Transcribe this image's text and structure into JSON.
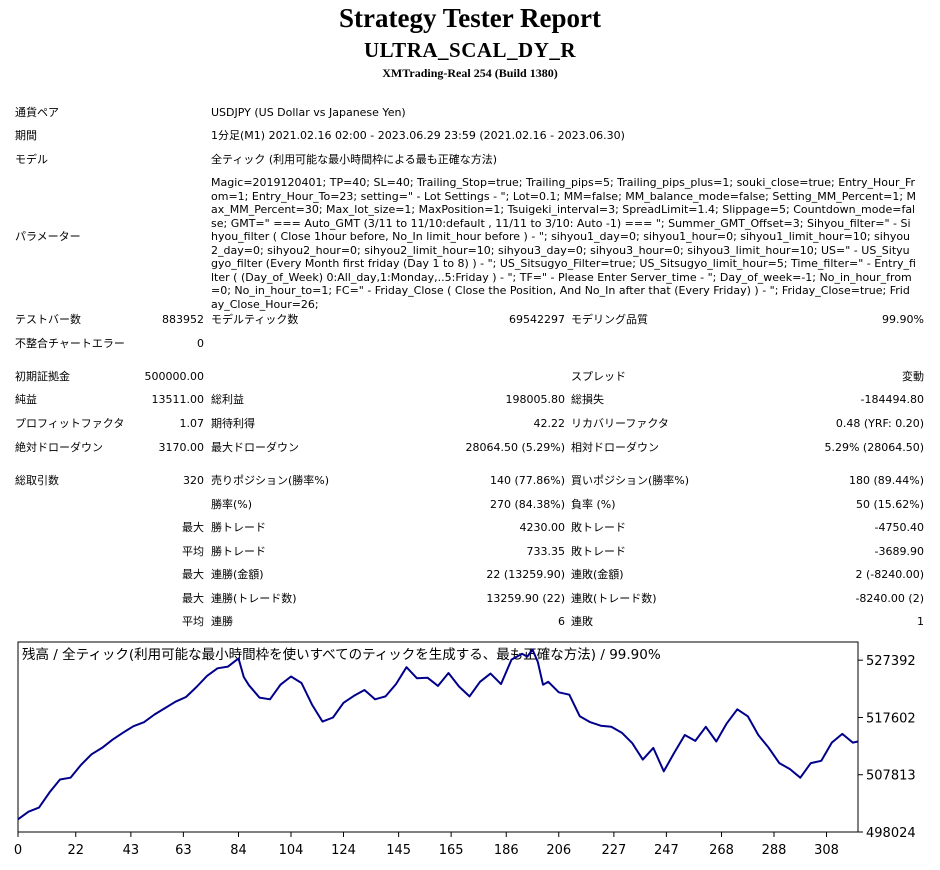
{
  "header": {
    "title": "Strategy Tester Report",
    "ea_name": "ULTRA_SCAL_DY_R",
    "server": "XMTrading-Real 254 (Build 1380)"
  },
  "info": {
    "symbol_label": "通貨ペア",
    "symbol_value": "USDJPY (US Dollar vs Japanese Yen)",
    "period_label": "期間",
    "period_value": "1分足(M1) 2021.02.16 02:00 - 2023.06.29 23:59 (2021.02.16 - 2023.06.30)",
    "model_label": "モデル",
    "model_value": "全ティック (利用可能な最小時間枠による最も正確な方法)",
    "params_label": "パラメーター",
    "params_value": "Magic=2019120401; TP=40; SL=40; Trailing_Stop=true; Trailing_pips=5; Trailing_pips_plus=1; souki_close=true; Entry_Hour_From=1; Entry_Hour_To=23; setting=\" - Lot Settings - \"; Lot=0.1; MM=false; MM_balance_mode=false; Setting_MM_Percent=1; Max_MM_Percent=30; Max_lot_size=1; MaxPosition=1; Tsuigeki_interval=3; SpreadLimit=1.4; Slippage=5; Countdown_mode=false; GMT=\" === Auto_GMT (3/11 to 11/10:default , 11/11 to 3/10: Auto -1) === \"; Summer_GMT_Offset=3; Sihyou_filter=\" - Sihyou_filter ( Close 1hour before, No_In limit_hour before ) - \"; sihyou1_day=0; sihyou1_hour=0; sihyou1_limit_hour=10; sihyou2_day=0; sihyou2_hour=0; sihyou2_limit_hour=10; sihyou3_day=0; sihyou3_hour=0; sihyou3_limit_hour=10; US=\" - US_Sityugyo_filter (Every Month first friday (Day 1 to 8) ) - \"; US_Sitsugyo_Filter=true; US_Sitsugyo_limit_hour=5; Time_filter=\" - Entry_filter ( (Day_of_Week) 0:All_day,1:Monday,..5:Friday ) - \"; TF=\" - Please Enter Server_time - \"; Day_of_week=-1; No_in_hour_from=0; No_in_hour_to=1; FC=\" - Friday_Close ( Close the Position, And No_In after that (Every Friday) ) - \"; Friday_Close=true; Friday_Close_Hour=26;"
  },
  "stats": {
    "bars_label": "テストバー数",
    "bars_value": "883952",
    "ticks_label": "モデルティック数",
    "ticks_value": "69542297",
    "quality_label": "モデリング品質",
    "quality_value": "99.90%",
    "mismatch_label": "不整合チャートエラー",
    "mismatch_value": "0",
    "deposit_label": "初期証拠金",
    "deposit_value": "500000.00",
    "spread_label": "スプレッド",
    "spread_value": "変動",
    "net_label": "純益",
    "net_value": "13511.00",
    "gross_profit_label": "総利益",
    "gross_profit_value": "198005.80",
    "gross_loss_label": "総損失",
    "gross_loss_value": "-184494.80",
    "pf_label": "プロフィットファクタ",
    "pf_value": "1.07",
    "payoff_label": "期待利得",
    "payoff_value": "42.22",
    "recovery_label": "リカバリーファクタ",
    "recovery_value": "0.48 (YRF: 0.20)",
    "abs_dd_label": "絶対ドローダウン",
    "abs_dd_value": "3170.00",
    "max_dd_label": "最大ドローダウン",
    "max_dd_value": "28064.50 (5.29%)",
    "rel_dd_label": "相対ドローダウン",
    "rel_dd_value": "5.29% (28064.50)",
    "trades_label": "総取引数",
    "trades_value": "320",
    "short_label": "売りポジション(勝率%)",
    "short_value": "140 (77.86%)",
    "long_label": "買いポジション(勝率%)",
    "long_value": "180 (89.44%)",
    "win_label": "勝率(%)",
    "win_value": "270 (84.38%)",
    "loss_label": "負率 (%)",
    "loss_value": "50 (15.62%)",
    "max_word": "最大",
    "avg_word": "平均",
    "lwin_label": "勝トレード",
    "lwin_value": "4230.00",
    "lloss_label": "敗トレード",
    "lloss_value": "-4750.40",
    "awin_label": "勝トレード",
    "awin_value": "733.35",
    "aloss_label": "敗トレード",
    "aloss_value": "-3689.90",
    "mcw_label": "連勝(金額)",
    "mcw_value": "22 (13259.90)",
    "mcl_label": "連敗(金額)",
    "mcl_value": "2 (-8240.00)",
    "mcp_label": "連勝(トレード数)",
    "mcp_value": "13259.90 (22)",
    "mcpl_label": "連敗(トレード数)",
    "mcpl_value": "-8240.00 (2)",
    "acw_label": "連勝",
    "acw_value": "6",
    "acl_label": "連敗",
    "acl_value": "1"
  },
  "chart_data": {
    "type": "line",
    "title": "残高 / 全ティック(利用可能な最小時間枠を使いすべてのティックを生成する、最も正確な方法) / 99.90%",
    "x_ticks": [
      "0",
      "22",
      "43",
      "63",
      "84",
      "104",
      "124",
      "145",
      "165",
      "186",
      "206",
      "227",
      "247",
      "268",
      "288",
      "308"
    ],
    "y_ticks": [
      "527392",
      "517602",
      "507813",
      "498024"
    ],
    "xlim": [
      0,
      320
    ],
    "ylim": [
      498024,
      530500
    ],
    "line_color": "#00008b",
    "series": [
      {
        "x": [
          0,
          4,
          8,
          12,
          16,
          20,
          24,
          28,
          32,
          36,
          40,
          44,
          48,
          52,
          56,
          60,
          64,
          68,
          72,
          76,
          80,
          84,
          86,
          88,
          92,
          96,
          100,
          104,
          108,
          112,
          116,
          120,
          124,
          128,
          132,
          136,
          140,
          144,
          148,
          152,
          156,
          160,
          164,
          168,
          172,
          176,
          180,
          184,
          188,
          192,
          194,
          196,
          198,
          200,
          202,
          206,
          210,
          214,
          218,
          222,
          226,
          230,
          234,
          238,
          242,
          246,
          250,
          254,
          258,
          262,
          266,
          270,
          274,
          278,
          282,
          286,
          290,
          294,
          298,
          302,
          306,
          310,
          314,
          318,
          320
        ],
        "values": [
          500200,
          501500,
          502200,
          504800,
          507000,
          507300,
          509500,
          511300,
          512400,
          513800,
          515000,
          516100,
          516800,
          518100,
          519200,
          520300,
          521100,
          522800,
          524700,
          526000,
          526300,
          527700,
          524500,
          523100,
          521000,
          520700,
          523200,
          524600,
          523500,
          519800,
          516900,
          517600,
          520100,
          521300,
          522300,
          520700,
          521200,
          523300,
          526200,
          524300,
          524400,
          523000,
          525200,
          522900,
          521200,
          523700,
          525100,
          523300,
          527500,
          528500,
          528000,
          529200,
          527100,
          523200,
          523700,
          521900,
          521500,
          517800,
          516800,
          516200,
          516000,
          515000,
          513200,
          510400,
          512400,
          508400,
          511600,
          514600,
          513600,
          516000,
          513500,
          516600,
          519000,
          517800,
          514600,
          512400,
          509800,
          508800,
          507300,
          509800,
          510200,
          513300,
          514800,
          513300,
          513500
        ]
      }
    ]
  }
}
